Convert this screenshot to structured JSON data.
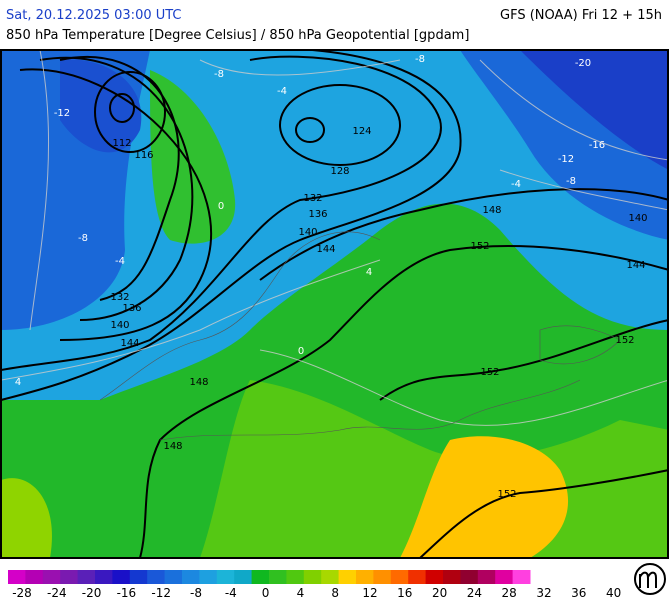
{
  "header": {
    "left": "Sat, 20.12.2025 03:00 UTC",
    "right": "GFS (NOAA) Fri 12 + 15h",
    "subtitle": "850 hPa Temperature [Degree Celsius] / 850 hPa Geopotential [gpdam]"
  },
  "map": {
    "geopotential_labels": [
      "112",
      "116",
      "124",
      "128",
      "132",
      "136",
      "140",
      "144",
      "148",
      "152",
      "140",
      "144",
      "132",
      "136",
      "140",
      "144",
      "148",
      "152",
      "152",
      "148",
      "152"
    ],
    "temperature_labels": [
      "-12",
      "-8",
      "-4",
      "-8",
      "-20",
      "-16",
      "-12",
      "-8",
      "-4",
      "-8",
      "-4",
      "0",
      "4",
      "4",
      "0"
    ]
  },
  "colorbar": {
    "labels": [
      "-28",
      "-24",
      "-20",
      "-16",
      "-12",
      "-8",
      "-4",
      "0",
      "4",
      "8",
      "12",
      "16",
      "20",
      "24",
      "28",
      "32",
      "36",
      "40"
    ],
    "colors": [
      "#d400c8",
      "#b400b4",
      "#9a10b0",
      "#7a1ab0",
      "#5a20b8",
      "#3a18c0",
      "#1a10c8",
      "#1438d0",
      "#1a58d8",
      "#1a70dc",
      "#1c88e0",
      "#1ea0e0",
      "#1cb4d8",
      "#10a8c8",
      "#10b820",
      "#30c020",
      "#50c810",
      "#80d000",
      "#a8d800",
      "#ffd000",
      "#ffb000",
      "#ff9000",
      "#ff6a00",
      "#f03000",
      "#d00000",
      "#b00010",
      "#900030",
      "#b00060",
      "#e000a0",
      "#ff40e0"
    ]
  }
}
